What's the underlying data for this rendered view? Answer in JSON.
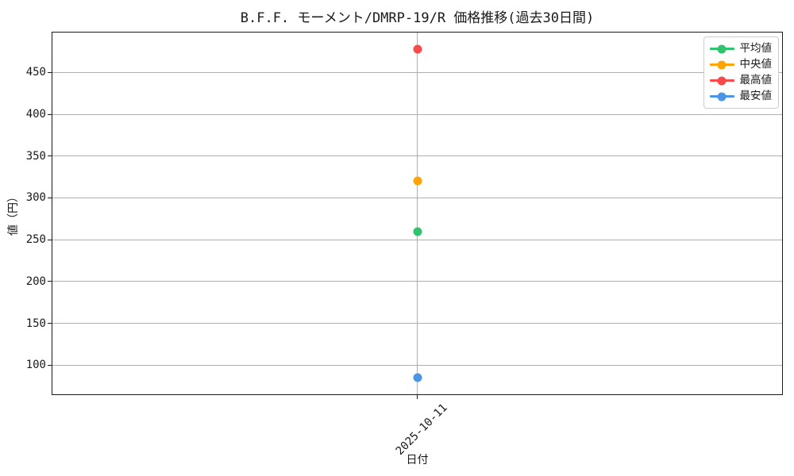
{
  "chart_data": {
    "type": "line",
    "title": "B.F.F. モーメント/DMRP-19/R 価格推移(過去30日間)",
    "xlabel": "日付",
    "ylabel": "値（円）",
    "x": [
      "2025-10-11"
    ],
    "categories": [
      "2025-10-11"
    ],
    "series": [
      {
        "key": "average",
        "name": "平均値",
        "color": "#2ec46e",
        "values": [
          260
        ]
      },
      {
        "key": "median",
        "name": "中央値",
        "color": "#ffa408",
        "values": [
          320
        ]
      },
      {
        "key": "highest",
        "name": "最高値",
        "color": "#fa4b4b",
        "values": [
          478
        ]
      },
      {
        "key": "lowest",
        "name": "最安値",
        "color": "#4b94e6",
        "values": [
          85
        ]
      }
    ],
    "yticks": [
      100,
      150,
      200,
      250,
      300,
      350,
      400,
      450
    ],
    "ylim": [
      65.35,
      497.65
    ],
    "grid": true,
    "legend_position": "upper right",
    "colors": {
      "grid": "#b0b0b0",
      "spine": "#1a1a1a",
      "text": "#1a1a1a",
      "legend_border": "#cccccc",
      "background": "#ffffff"
    }
  }
}
